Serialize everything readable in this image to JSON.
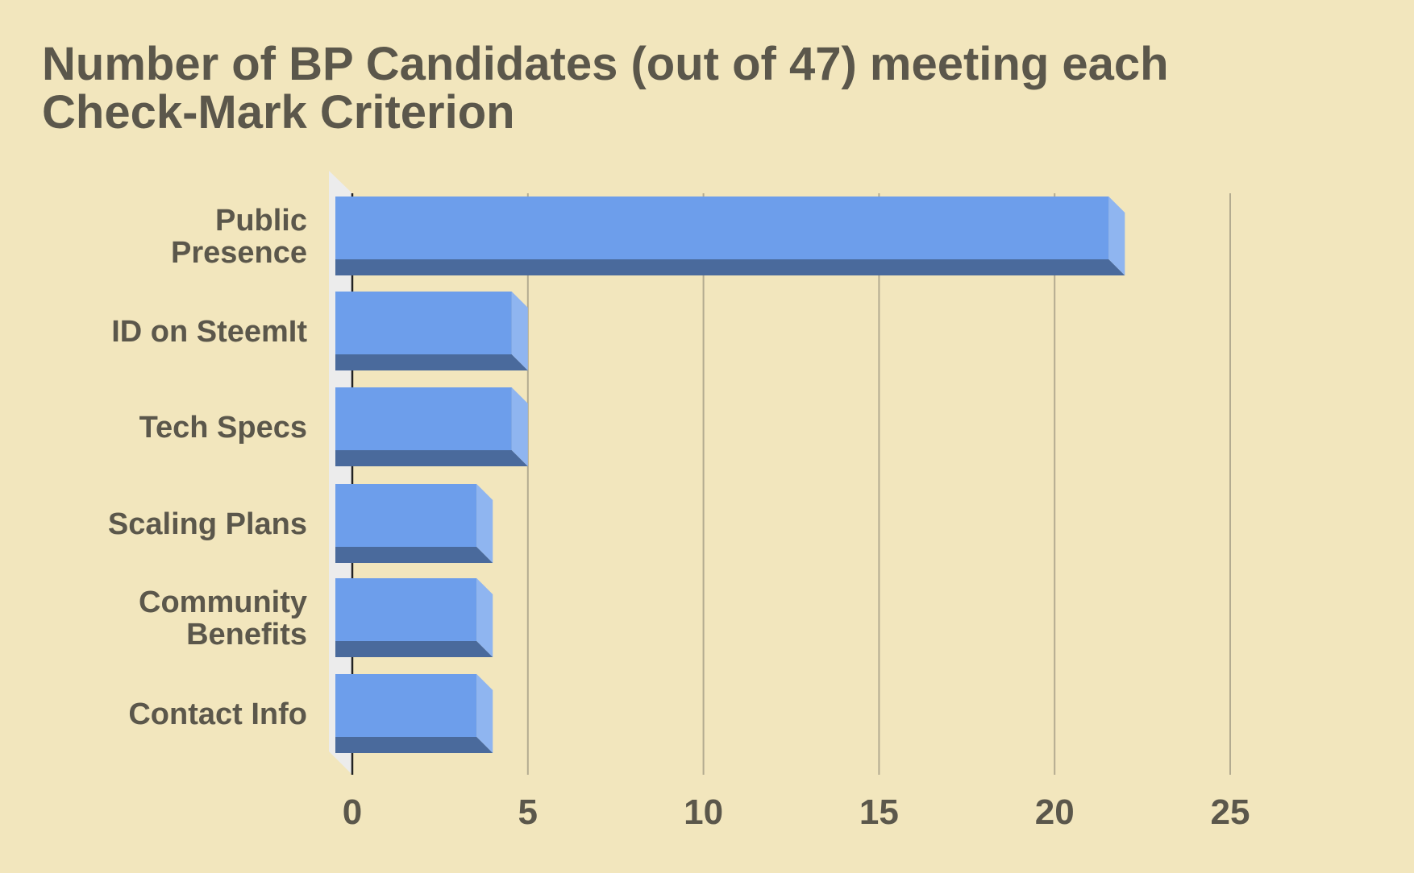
{
  "chart_data": {
    "type": "bar",
    "orientation": "horizontal",
    "style": "3d",
    "title": "Number of BP Candidates (out of 47) meeting each\nCheck-Mark Criterion",
    "categories": [
      [
        "Public",
        "Presence"
      ],
      [
        "ID on SteemIt"
      ],
      [
        "Tech Specs"
      ],
      [
        "Scaling Plans"
      ],
      [
        "Community",
        "Benefits"
      ],
      [
        "Contact Info"
      ]
    ],
    "values": [
      22,
      5,
      5,
      4,
      4,
      4
    ],
    "xlim": [
      0,
      25
    ],
    "xticks": [
      "0",
      "5",
      "10",
      "15",
      "20",
      "25"
    ],
    "xlabel": "",
    "ylabel": "",
    "grid": true,
    "legend": "none",
    "colors": {
      "background": "#f2e6bd",
      "bar_front": "#6d9eeb",
      "bar_bottom": "#4a6a9c",
      "bar_side": "#8fb5f0",
      "gridline": "#b3ab90",
      "axis": "#222222",
      "floor": "#ececec",
      "text": "#5b574b"
    }
  }
}
